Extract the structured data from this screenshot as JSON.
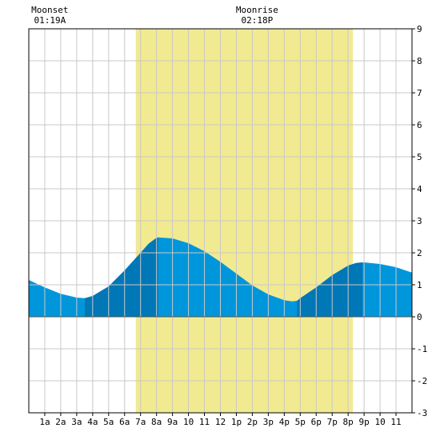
{
  "chart_data": {
    "type": "area",
    "moon_events": [
      {
        "label": "Moonset",
        "time": "01:19A",
        "hour": 1.32
      },
      {
        "label": "Moonrise",
        "time": "02:18P",
        "hour": 14.3
      }
    ],
    "x_tick_labels": [
      "1a",
      "2a",
      "3a",
      "4a",
      "5a",
      "6a",
      "7a",
      "8a",
      "9a",
      "10",
      "11",
      "12",
      "1p",
      "2p",
      "3p",
      "4p",
      "5p",
      "6p",
      "7p",
      "8p",
      "9p",
      "10",
      "11"
    ],
    "x_range": [
      0,
      24
    ],
    "y_range": [
      -3,
      9
    ],
    "y_ticks": [
      -3,
      -2,
      -1,
      0,
      1,
      2,
      3,
      4,
      5,
      6,
      7,
      8,
      9
    ],
    "grid": true,
    "daylight": [
      6.7,
      20.3
    ],
    "rising_segments": [
      [
        3.5,
        8.1
      ],
      [
        16.8,
        20.9
      ]
    ],
    "series": [
      {
        "x": [
          0,
          1,
          2,
          3,
          3.5,
          4,
          5,
          6,
          7,
          7.5,
          8,
          8.1,
          9,
          10,
          11,
          12,
          13,
          14,
          15,
          16,
          16.5,
          16.8,
          17,
          18,
          19,
          20,
          20.5,
          20.9,
          21,
          22,
          23,
          24
        ],
        "y": [
          1.15,
          0.92,
          0.72,
          0.6,
          0.58,
          0.65,
          0.95,
          1.45,
          2.0,
          2.28,
          2.47,
          2.48,
          2.45,
          2.3,
          2.05,
          1.72,
          1.35,
          0.98,
          0.7,
          0.52,
          0.48,
          0.5,
          0.58,
          0.92,
          1.3,
          1.6,
          1.68,
          1.7,
          1.7,
          1.65,
          1.55,
          1.38
        ]
      }
    ],
    "colors": {
      "water": "#0096dc",
      "water_rising": "#0077b6",
      "daylight": "#f2ea91",
      "grid": "#c8c8c8",
      "axis": "#000000"
    }
  }
}
